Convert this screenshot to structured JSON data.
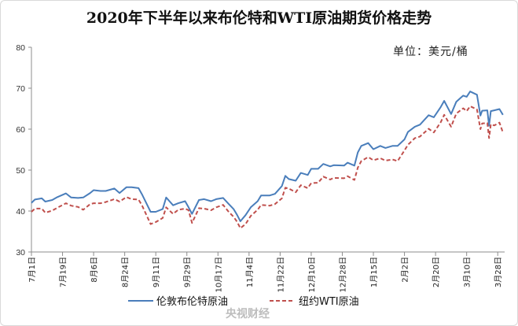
{
  "chart_data": {
    "type": "line",
    "title": "2020年下半年以来布伦特和WTI原油期货价格走势",
    "unit": "单位：美元/桶",
    "ylim": [
      30,
      80
    ],
    "yticks": [
      30,
      40,
      50,
      60,
      70,
      80
    ],
    "xlim": [
      "2020-07-01",
      "2021-04-01"
    ],
    "xtick_labels": [
      "7月1日",
      "7月19日",
      "8月6日",
      "8月24日",
      "9月11日",
      "9月29日",
      "10月17日",
      "11月4日",
      "11月22日",
      "12月10日",
      "12月28日",
      "1月15日",
      "2月2日",
      "2月20日",
      "3月10日",
      "3月28日"
    ],
    "xtick_dates": [
      "2020-07-01",
      "2020-07-19",
      "2020-08-06",
      "2020-08-24",
      "2020-09-11",
      "2020-09-29",
      "2020-10-17",
      "2020-11-04",
      "2020-11-22",
      "2020-12-10",
      "2020-12-28",
      "2021-01-15",
      "2021-02-02",
      "2021-02-20",
      "2021-03-10",
      "2021-03-28"
    ],
    "legend_position": "bottom",
    "grid": false,
    "series": [
      {
        "name": "伦敦布伦特原油",
        "color": "#4a7ebb",
        "style": "solid",
        "points": [
          [
            "2020-07-01",
            42.0
          ],
          [
            "2020-07-03",
            42.8
          ],
          [
            "2020-07-07",
            43.1
          ],
          [
            "2020-07-09",
            42.3
          ],
          [
            "2020-07-13",
            42.7
          ],
          [
            "2020-07-16",
            43.4
          ],
          [
            "2020-07-21",
            44.3
          ],
          [
            "2020-07-24",
            43.3
          ],
          [
            "2020-07-28",
            43.2
          ],
          [
            "2020-07-31",
            43.3
          ],
          [
            "2020-08-04",
            44.4
          ],
          [
            "2020-08-06",
            45.1
          ],
          [
            "2020-08-10",
            44.9
          ],
          [
            "2020-08-13",
            44.9
          ],
          [
            "2020-08-18",
            45.5
          ],
          [
            "2020-08-21",
            44.4
          ],
          [
            "2020-08-25",
            45.8
          ],
          [
            "2020-08-28",
            45.8
          ],
          [
            "2020-09-01",
            45.6
          ],
          [
            "2020-09-03",
            44.1
          ],
          [
            "2020-09-08",
            39.8
          ],
          [
            "2020-09-11",
            39.8
          ],
          [
            "2020-09-15",
            40.5
          ],
          [
            "2020-09-17",
            43.3
          ],
          [
            "2020-09-21",
            41.4
          ],
          [
            "2020-09-24",
            41.9
          ],
          [
            "2020-09-28",
            42.4
          ],
          [
            "2020-09-30",
            40.9
          ],
          [
            "2020-10-02",
            39.3
          ],
          [
            "2020-10-06",
            42.7
          ],
          [
            "2020-10-09",
            42.9
          ],
          [
            "2020-10-13",
            42.4
          ],
          [
            "2020-10-16",
            42.9
          ],
          [
            "2020-10-20",
            43.2
          ],
          [
            "2020-10-23",
            41.8
          ],
          [
            "2020-10-26",
            40.5
          ],
          [
            "2020-10-28",
            39.1
          ],
          [
            "2020-10-30",
            37.5
          ],
          [
            "2020-11-02",
            39.0
          ],
          [
            "2020-11-05",
            40.9
          ],
          [
            "2020-11-09",
            42.4
          ],
          [
            "2020-11-11",
            43.8
          ],
          [
            "2020-11-16",
            43.8
          ],
          [
            "2020-11-19",
            44.2
          ],
          [
            "2020-11-23",
            46.1
          ],
          [
            "2020-11-25",
            48.6
          ],
          [
            "2020-11-27",
            47.8
          ],
          [
            "2020-12-01",
            47.4
          ],
          [
            "2020-12-04",
            49.3
          ],
          [
            "2020-12-08",
            48.8
          ],
          [
            "2020-12-10",
            50.3
          ],
          [
            "2020-12-14",
            50.3
          ],
          [
            "2020-12-17",
            51.5
          ],
          [
            "2020-12-21",
            50.9
          ],
          [
            "2020-12-23",
            51.2
          ],
          [
            "2020-12-29",
            51.1
          ],
          [
            "2020-12-31",
            51.8
          ],
          [
            "2021-01-04",
            51.1
          ],
          [
            "2021-01-06",
            54.3
          ],
          [
            "2021-01-08",
            55.9
          ],
          [
            "2021-01-12",
            56.6
          ],
          [
            "2021-01-15",
            55.1
          ],
          [
            "2021-01-19",
            55.9
          ],
          [
            "2021-01-22",
            55.4
          ],
          [
            "2021-01-26",
            55.9
          ],
          [
            "2021-01-29",
            55.9
          ],
          [
            "2021-02-02",
            57.5
          ],
          [
            "2021-02-04",
            59.3
          ],
          [
            "2021-02-08",
            60.6
          ],
          [
            "2021-02-11",
            61.1
          ],
          [
            "2021-02-16",
            63.4
          ],
          [
            "2021-02-19",
            62.9
          ],
          [
            "2021-02-23",
            65.4
          ],
          [
            "2021-02-25",
            66.9
          ],
          [
            "2021-03-01",
            63.7
          ],
          [
            "2021-03-04",
            66.7
          ],
          [
            "2021-03-08",
            68.2
          ],
          [
            "2021-03-10",
            67.9
          ],
          [
            "2021-03-12",
            69.2
          ],
          [
            "2021-03-16",
            68.4
          ],
          [
            "2021-03-18",
            63.3
          ],
          [
            "2021-03-19",
            64.5
          ],
          [
            "2021-03-22",
            64.6
          ],
          [
            "2021-03-23",
            60.8
          ],
          [
            "2021-03-24",
            64.4
          ],
          [
            "2021-03-26",
            64.6
          ],
          [
            "2021-03-29",
            64.9
          ],
          [
            "2021-03-31",
            63.5
          ]
        ]
      },
      {
        "name": "纽约WTI原油",
        "color": "#c0504d",
        "style": "dashed",
        "points": [
          [
            "2020-07-01",
            39.8
          ],
          [
            "2020-07-03",
            40.6
          ],
          [
            "2020-07-07",
            40.6
          ],
          [
            "2020-07-09",
            39.6
          ],
          [
            "2020-07-13",
            40.1
          ],
          [
            "2020-07-16",
            40.8
          ],
          [
            "2020-07-21",
            41.9
          ],
          [
            "2020-07-24",
            41.3
          ],
          [
            "2020-07-28",
            41.0
          ],
          [
            "2020-07-31",
            40.3
          ],
          [
            "2020-08-04",
            41.7
          ],
          [
            "2020-08-06",
            41.9
          ],
          [
            "2020-08-10",
            41.9
          ],
          [
            "2020-08-13",
            42.2
          ],
          [
            "2020-08-18",
            42.9
          ],
          [
            "2020-08-21",
            42.3
          ],
          [
            "2020-08-25",
            43.4
          ],
          [
            "2020-08-28",
            42.9
          ],
          [
            "2020-09-01",
            42.8
          ],
          [
            "2020-09-03",
            41.4
          ],
          [
            "2020-09-08",
            36.8
          ],
          [
            "2020-09-11",
            37.3
          ],
          [
            "2020-09-15",
            38.3
          ],
          [
            "2020-09-17",
            40.9
          ],
          [
            "2020-09-21",
            39.3
          ],
          [
            "2020-09-24",
            40.3
          ],
          [
            "2020-09-28",
            40.6
          ],
          [
            "2020-09-30",
            40.2
          ],
          [
            "2020-10-02",
            37.1
          ],
          [
            "2020-10-06",
            40.7
          ],
          [
            "2020-10-09",
            40.6
          ],
          [
            "2020-10-13",
            40.2
          ],
          [
            "2020-10-16",
            40.9
          ],
          [
            "2020-10-20",
            41.5
          ],
          [
            "2020-10-23",
            39.9
          ],
          [
            "2020-10-26",
            38.6
          ],
          [
            "2020-10-28",
            37.4
          ],
          [
            "2020-10-30",
            35.8
          ],
          [
            "2020-11-02",
            36.8
          ],
          [
            "2020-11-05",
            38.8
          ],
          [
            "2020-11-09",
            40.3
          ],
          [
            "2020-11-11",
            41.5
          ],
          [
            "2020-11-16",
            41.3
          ],
          [
            "2020-11-19",
            41.7
          ],
          [
            "2020-11-23",
            43.1
          ],
          [
            "2020-11-25",
            45.7
          ],
          [
            "2020-11-27",
            45.5
          ],
          [
            "2020-12-01",
            44.6
          ],
          [
            "2020-12-04",
            46.3
          ],
          [
            "2020-12-08",
            45.6
          ],
          [
            "2020-12-10",
            46.8
          ],
          [
            "2020-12-14",
            46.9
          ],
          [
            "2020-12-17",
            48.4
          ],
          [
            "2020-12-21",
            47.7
          ],
          [
            "2020-12-23",
            48.1
          ],
          [
            "2020-12-29",
            48.0
          ],
          [
            "2020-12-31",
            48.5
          ],
          [
            "2021-01-04",
            47.6
          ],
          [
            "2021-01-06",
            50.6
          ],
          [
            "2021-01-08",
            52.2
          ],
          [
            "2021-01-12",
            53.2
          ],
          [
            "2021-01-15",
            52.4
          ],
          [
            "2021-01-19",
            52.9
          ],
          [
            "2021-01-22",
            52.3
          ],
          [
            "2021-01-26",
            52.6
          ],
          [
            "2021-01-29",
            52.2
          ],
          [
            "2021-02-02",
            54.8
          ],
          [
            "2021-02-04",
            56.2
          ],
          [
            "2021-02-08",
            57.8
          ],
          [
            "2021-02-11",
            58.2
          ],
          [
            "2021-02-16",
            60.1
          ],
          [
            "2021-02-19",
            59.2
          ],
          [
            "2021-02-23",
            61.7
          ],
          [
            "2021-02-25",
            63.5
          ],
          [
            "2021-03-01",
            60.6
          ],
          [
            "2021-03-04",
            63.8
          ],
          [
            "2021-03-08",
            65.1
          ],
          [
            "2021-03-10",
            64.4
          ],
          [
            "2021-03-12",
            65.6
          ],
          [
            "2021-03-16",
            64.8
          ],
          [
            "2021-03-18",
            60.0
          ],
          [
            "2021-03-19",
            61.4
          ],
          [
            "2021-03-22",
            61.5
          ],
          [
            "2021-03-23",
            57.8
          ],
          [
            "2021-03-24",
            61.2
          ],
          [
            "2021-03-26",
            60.9
          ],
          [
            "2021-03-29",
            61.6
          ],
          [
            "2021-03-31",
            59.2
          ]
        ]
      }
    ]
  },
  "watermark": "央视财经"
}
